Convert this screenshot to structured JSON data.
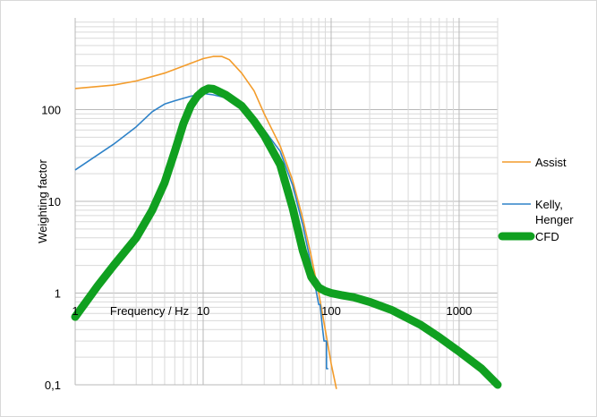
{
  "chart_data": {
    "type": "line",
    "title": "",
    "xlabel": "Frequency / Hz",
    "ylabel": "Weighting factor",
    "x_scale": "log",
    "y_scale": "log",
    "xlim": [
      1,
      2000
    ],
    "ylim": [
      0.1,
      1000
    ],
    "grid": true,
    "legend_position": "right",
    "x_tick_labels": [
      {
        "value": 1,
        "label": "1"
      },
      {
        "value": 10,
        "label": "10"
      },
      {
        "value": 100,
        "label": "100"
      },
      {
        "value": 1000,
        "label": "1000"
      }
    ],
    "y_tick_labels": [
      {
        "value": 0.1,
        "label": "0,1"
      },
      {
        "value": 1,
        "label": "1"
      },
      {
        "value": 10,
        "label": "10"
      },
      {
        "value": 100,
        "label": "100"
      }
    ],
    "series": [
      {
        "name": "Assist",
        "color": "#f39c2b",
        "line_width": "thin",
        "x": [
          1,
          2,
          3,
          5,
          8,
          10,
          12,
          14,
          16,
          20,
          25,
          30,
          40,
          50,
          60,
          70,
          80,
          90,
          100,
          110
        ],
        "y": [
          170,
          185,
          205,
          250,
          320,
          360,
          380,
          380,
          350,
          250,
          160,
          90,
          40,
          17,
          6.5,
          2.5,
          1.0,
          0.4,
          0.17,
          0.09
        ]
      },
      {
        "name": "Kelly, Henger",
        "color": "#2e82c8",
        "line_width": "thin",
        "x": [
          1,
          2,
          3,
          4,
          5,
          6,
          8,
          10,
          12,
          14,
          16,
          20,
          25,
          30,
          40,
          50,
          60,
          70,
          75,
          80,
          82,
          85,
          85,
          88,
          88,
          90,
          92,
          92,
          95,
          95
        ],
        "y": [
          22,
          42,
          65,
          95,
          115,
          125,
          140,
          150,
          145,
          138,
          130,
          105,
          80,
          60,
          35,
          15,
          5.5,
          2.0,
          1.2,
          0.75,
          0.75,
          0.45,
          0.45,
          0.3,
          0.3,
          0.3,
          0.3,
          0.15,
          0.15,
          0.15
        ]
      },
      {
        "name": "CFD",
        "color": "#10a020",
        "line_width": "thick",
        "x": [
          1,
          1.5,
          2,
          3,
          4,
          5,
          6,
          7,
          8,
          9,
          10,
          11,
          12,
          13,
          15,
          20,
          25,
          30,
          40,
          50,
          60,
          70,
          80,
          90,
          100,
          120,
          150,
          200,
          300,
          500,
          700,
          1000,
          1500,
          2000
        ],
        "y": [
          0.55,
          1.2,
          2.0,
          4.0,
          8.0,
          16,
          35,
          70,
          110,
          140,
          160,
          170,
          168,
          160,
          145,
          110,
          75,
          52,
          25,
          8.5,
          2.9,
          1.5,
          1.15,
          1.05,
          1.0,
          0.95,
          0.9,
          0.8,
          0.65,
          0.45,
          0.33,
          0.23,
          0.15,
          0.1
        ]
      }
    ]
  }
}
